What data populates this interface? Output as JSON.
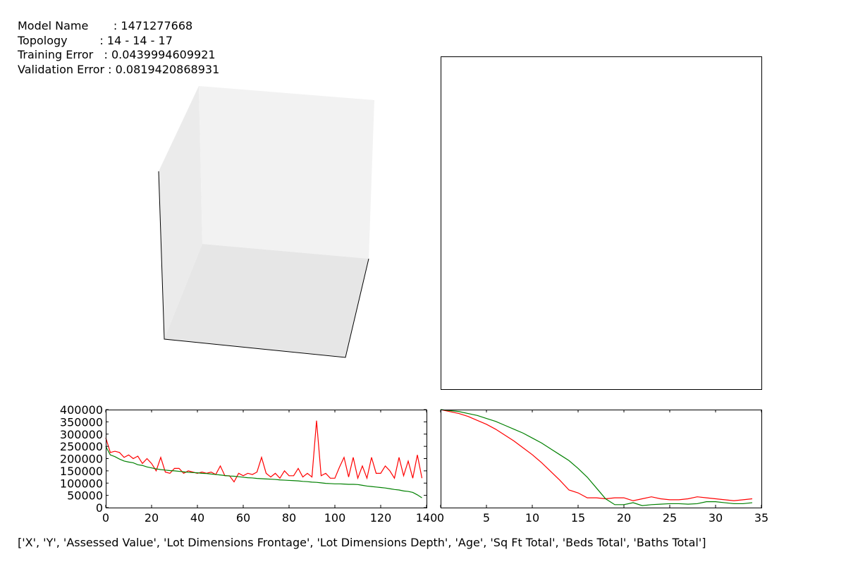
{
  "header": {
    "lines": [
      "Model Name       : 1471277668",
      "Topology         : 14 - 14 - 17",
      "Training Error   : 0.0439994609921",
      "Validation Error : 0.0819420868931"
    ]
  },
  "footer": "['X', 'Y', 'Assessed Value', 'Lot Dimensions Frontage', 'Lot Dimensions Depth', 'Age', 'Sq Ft Total', 'Beds Total', 'Baths Total']",
  "chart_data": [
    {
      "type": "line",
      "x": [
        0,
        2,
        4,
        6,
        8,
        10,
        12,
        14,
        16,
        18,
        20,
        22,
        24,
        26,
        28,
        30,
        32,
        34,
        36,
        38,
        40,
        42,
        44,
        46,
        48,
        50,
        52,
        54,
        56,
        58,
        60,
        62,
        64,
        66,
        68,
        70,
        72,
        74,
        76,
        78,
        80,
        82,
        84,
        86,
        88,
        90,
        92,
        94,
        96,
        98,
        100,
        102,
        104,
        106,
        108,
        110,
        112,
        114,
        116,
        118,
        120,
        122,
        124,
        126,
        128,
        130,
        132,
        134,
        136,
        138
      ],
      "series": [
        {
          "color": "#ff0000",
          "values": [
            285000,
            225000,
            230000,
            225000,
            205000,
            215000,
            200000,
            210000,
            180000,
            200000,
            180000,
            150000,
            205000,
            145000,
            140000,
            160000,
            160000,
            140000,
            150000,
            145000,
            140000,
            145000,
            140000,
            145000,
            135000,
            170000,
            130000,
            130000,
            105000,
            140000,
            130000,
            140000,
            135000,
            145000,
            205000,
            140000,
            125000,
            140000,
            120000,
            150000,
            130000,
            130000,
            160000,
            125000,
            140000,
            125000,
            355000,
            130000,
            140000,
            120000,
            120000,
            165000,
            205000,
            125000,
            205000,
            120000,
            170000,
            120000,
            205000,
            140000,
            140000,
            170000,
            150000,
            120000,
            205000,
            130000,
            190000,
            120000,
            215000,
            120000
          ]
        },
        {
          "color": "#008000",
          "values": [
            250000,
            215000,
            208000,
            198000,
            190000,
            186000,
            183000,
            175000,
            172000,
            166000,
            162000,
            158000,
            155000,
            153000,
            151000,
            150000,
            148000,
            146000,
            144000,
            143000,
            142000,
            140000,
            139000,
            137000,
            135000,
            133000,
            131000,
            129000,
            128000,
            126000,
            124000,
            122000,
            121000,
            119000,
            118000,
            117000,
            116000,
            115000,
            113000,
            112000,
            111000,
            110000,
            109000,
            107000,
            106000,
            104000,
            103000,
            101000,
            99000,
            98000,
            97000,
            97000,
            96000,
            95000,
            95000,
            94000,
            91000,
            88000,
            86000,
            84000,
            82000,
            80000,
            77000,
            74000,
            72000,
            68000,
            66000,
            62000,
            52000,
            40000
          ]
        }
      ],
      "xlim": [
        0,
        140
      ],
      "ylim": [
        0,
        400000
      ],
      "xticks": [
        0,
        20,
        40,
        60,
        80,
        100,
        120,
        140
      ],
      "yticks": [
        0,
        50000,
        100000,
        150000,
        200000,
        250000,
        300000,
        350000,
        400000
      ]
    },
    {
      "type": "line",
      "x": [
        0,
        1,
        2,
        3,
        4,
        5,
        6,
        7,
        8,
        9,
        10,
        11,
        12,
        13,
        14,
        15,
        16,
        17,
        18,
        19,
        20,
        21,
        22,
        23,
        24,
        25,
        26,
        27,
        28,
        29,
        30,
        31,
        32,
        33,
        34
      ],
      "series": [
        {
          "color": "#ff0000",
          "values": [
            1.0,
            0.98,
            0.96,
            0.93,
            0.89,
            0.85,
            0.8,
            0.74,
            0.68,
            0.61,
            0.54,
            0.46,
            0.37,
            0.28,
            0.18,
            0.15,
            0.1,
            0.1,
            0.09,
            0.1,
            0.1,
            0.07,
            0.09,
            0.11,
            0.09,
            0.08,
            0.08,
            0.09,
            0.11,
            0.1,
            0.09,
            0.08,
            0.07,
            0.08,
            0.09
          ]
        },
        {
          "color": "#008000",
          "values": [
            1.0,
            0.99,
            0.98,
            0.96,
            0.94,
            0.91,
            0.88,
            0.84,
            0.8,
            0.76,
            0.71,
            0.66,
            0.6,
            0.54,
            0.48,
            0.4,
            0.31,
            0.2,
            0.09,
            0.03,
            0.03,
            0.05,
            0.02,
            0.03,
            0.035,
            0.04,
            0.04,
            0.035,
            0.04,
            0.06,
            0.06,
            0.05,
            0.04,
            0.04,
            0.05
          ]
        }
      ],
      "xlim": [
        0,
        35
      ],
      "ylim": [
        0,
        1
      ],
      "xticks": [
        0,
        5,
        10,
        15,
        20,
        25,
        30,
        35
      ]
    }
  ]
}
